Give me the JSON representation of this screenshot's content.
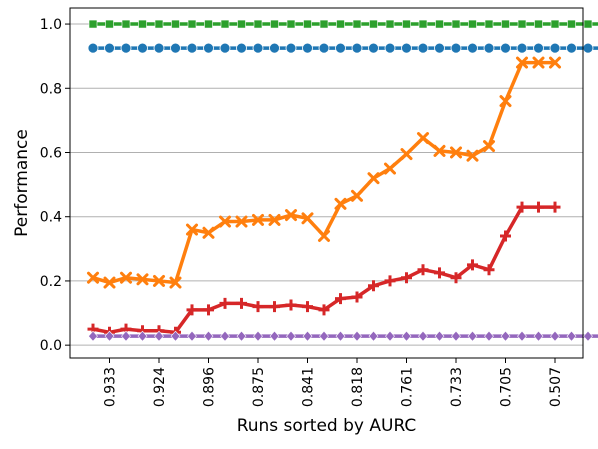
{
  "chart_data": {
    "type": "line",
    "title": "",
    "xlabel": "Runs sorted by AURC",
    "ylabel": "Performance",
    "ylim": [
      -0.04,
      1.05
    ],
    "grid": "y",
    "x_count": 32,
    "x_tick_labels": [
      {
        "index": 1,
        "label": "0.933"
      },
      {
        "index": 4,
        "label": "0.924"
      },
      {
        "index": 7,
        "label": "0.896"
      },
      {
        "index": 10,
        "label": "0.875"
      },
      {
        "index": 13,
        "label": "0.841"
      },
      {
        "index": 16,
        "label": "0.818"
      },
      {
        "index": 19,
        "label": "0.761"
      },
      {
        "index": 22,
        "label": "0.733"
      },
      {
        "index": 25,
        "label": "0.705"
      },
      {
        "index": 28,
        "label": "0.507"
      }
    ],
    "y_ticks": [
      0.0,
      0.2,
      0.4,
      0.6,
      0.8,
      1.0
    ],
    "y_tick_labels": [
      "0.0",
      "0.2",
      "0.4",
      "0.6",
      "0.8",
      "1.0"
    ],
    "series": [
      {
        "color": "#2ca02c",
        "marker": "square",
        "values": [
          1.0,
          1.0,
          1.0,
          1.0,
          1.0,
          1.0,
          1.0,
          1.0,
          1.0,
          1.0,
          1.0,
          1.0,
          1.0,
          1.0,
          1.0,
          1.0,
          1.0,
          1.0,
          1.0,
          1.0,
          1.0,
          1.0,
          1.0,
          1.0,
          1.0,
          1.0,
          1.0,
          1.0,
          1.0,
          1.0,
          1.0,
          1.0
        ]
      },
      {
        "color": "#1f77b4",
        "marker": "circle",
        "values": [
          0.925,
          0.925,
          0.925,
          0.925,
          0.925,
          0.925,
          0.925,
          0.925,
          0.925,
          0.925,
          0.925,
          0.925,
          0.925,
          0.925,
          0.925,
          0.925,
          0.925,
          0.925,
          0.925,
          0.925,
          0.925,
          0.925,
          0.925,
          0.925,
          0.925,
          0.925,
          0.925,
          0.925,
          0.925,
          0.925,
          0.925,
          0.925
        ]
      },
      {
        "color": "#ff7f0e",
        "marker": "x",
        "values": [
          0.21,
          0.195,
          0.21,
          0.205,
          0.2,
          0.195,
          0.36,
          0.35,
          0.385,
          0.385,
          0.39,
          0.39,
          0.405,
          0.395,
          0.34,
          0.44,
          0.465,
          0.52,
          0.55,
          0.595,
          0.645,
          0.605,
          0.6,
          0.59,
          0.62,
          0.76,
          0.88,
          0.88,
          0.88,
          null,
          null,
          null
        ]
      },
      {
        "color": "#d62728",
        "marker": "plus",
        "values": [
          0.05,
          0.04,
          0.05,
          0.045,
          0.045,
          0.04,
          0.11,
          0.11,
          0.13,
          0.13,
          0.12,
          0.12,
          0.125,
          0.12,
          0.11,
          0.145,
          0.15,
          0.185,
          0.2,
          0.21,
          0.235,
          0.225,
          0.21,
          0.25,
          0.235,
          0.34,
          0.43,
          0.43,
          0.43,
          null,
          null,
          null
        ]
      },
      {
        "color": "#9467bd",
        "marker": "diamond",
        "values": [
          0.028,
          0.028,
          0.028,
          0.028,
          0.028,
          0.028,
          0.028,
          0.028,
          0.028,
          0.028,
          0.028,
          0.028,
          0.028,
          0.028,
          0.028,
          0.028,
          0.028,
          0.028,
          0.028,
          0.028,
          0.028,
          0.028,
          0.028,
          0.028,
          0.028,
          0.028,
          0.028,
          0.028,
          0.028,
          0.028,
          0.028,
          0.028
        ]
      }
    ]
  }
}
